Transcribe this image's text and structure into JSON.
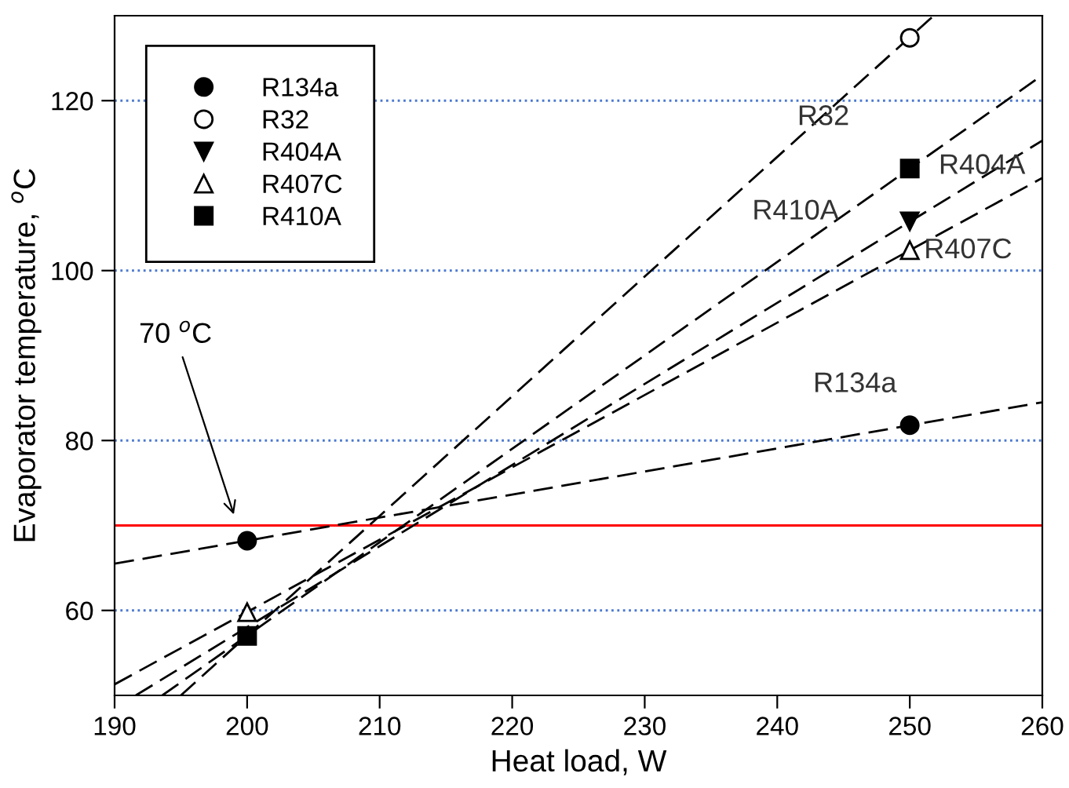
{
  "chart_data": {
    "type": "scatter",
    "xlabel": "Heat load, W",
    "ylabel": "Evaporator temperature, $^{o}$C",
    "xlim": [
      190,
      260
    ],
    "xticks": [
      190,
      200,
      210,
      220,
      230,
      240,
      250,
      260
    ],
    "ylim": [
      50,
      130
    ],
    "yticks": [
      60,
      80,
      100,
      120
    ],
    "grid": "y",
    "legend": "top left",
    "series": [
      {
        "name": "R134a",
        "marker": "circle",
        "color": "#000000",
        "x": [
          200,
          250
        ],
        "values": [
          68.2,
          81.8
        ]
      },
      {
        "name": "R32",
        "marker": "circle",
        "color": "#ffffff",
        "x": [
          250
        ],
        "values": [
          127.4
        ]
      },
      {
        "name": "R404A",
        "marker": "triangle-down",
        "color": "#000000",
        "x": [
          250
        ],
        "values": [
          105.8
        ]
      },
      {
        "name": "R407C",
        "marker": "triangle",
        "color": "#ffffff",
        "x": [
          200,
          250
        ],
        "values": [
          59.8,
          102.4
        ]
      },
      {
        "name": "R410A",
        "marker": "square",
        "color": "#000000",
        "x": [
          200,
          250
        ],
        "values": [
          57,
          112
        ]
      },
      {
        "type": "line",
        "line_style": "dashed",
        "color": "#000000",
        "x": [
          190,
          260
        ],
        "values": [
          65.5,
          84.5
        ]
      },
      {
        "type": "line",
        "line_style": "dashed",
        "color": "#000000",
        "x": [
          195,
          251.8
        ],
        "values": [
          50,
          130
        ]
      },
      {
        "type": "line",
        "line_style": "dashed",
        "color": "#000000",
        "x": [
          191.6,
          260
        ],
        "values": [
          50,
          115.3
        ]
      },
      {
        "type": "line",
        "line_style": "dashed",
        "color": "#000000",
        "x": [
          190,
          260
        ],
        "values": [
          51.3,
          110.9
        ]
      },
      {
        "type": "line",
        "line_style": "dashed",
        "color": "#000000",
        "x": [
          193.6,
          260
        ],
        "values": [
          50,
          123
        ]
      }
    ],
    "ref_lines": [
      {
        "axis": "y",
        "value": 70,
        "color": "#ff0000"
      }
    ],
    "annotations": [
      "R32",
      "R410A",
      "R404A",
      "R407C",
      "R134a",
      {
        "text": "70 $^{o}$C",
        "x": 199.1,
        "y": 70.8
      }
    ]
  }
}
